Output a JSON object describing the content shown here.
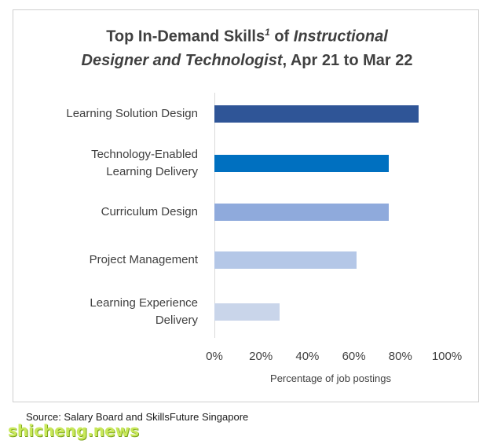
{
  "chart_data": {
    "type": "bar",
    "orientation": "horizontal",
    "title": {
      "prefix": "Top In-Demand Skills",
      "superscript": "1",
      "middle": " of ",
      "italic_part1": "Instructional",
      "italic_part2": "Designer and Technologist",
      "suffix": ", Apr 21 to Mar 22"
    },
    "categories": [
      [
        "Learning Solution Design"
      ],
      [
        "Technology-Enabled",
        "Learning Delivery"
      ],
      [
        "Curriculum Design"
      ],
      [
        "Project Management"
      ],
      [
        "Learning Experience",
        "Delivery"
      ]
    ],
    "values": [
      0.88,
      0.75,
      0.75,
      0.61,
      0.28
    ],
    "colors": [
      "#2f5597",
      "#0070c0",
      "#8faadc",
      "#b4c7e7",
      "#c9d5ea"
    ],
    "xlim": [
      0,
      1
    ],
    "xticks": [
      "0%",
      "20%",
      "40%",
      "60%",
      "80%",
      "100%"
    ],
    "xlabel": "Percentage of job postings",
    "grid": false,
    "legend": "none"
  },
  "source": "Source: Salary Board and SkillsFuture Singapore",
  "watermark": "shicheng.news"
}
